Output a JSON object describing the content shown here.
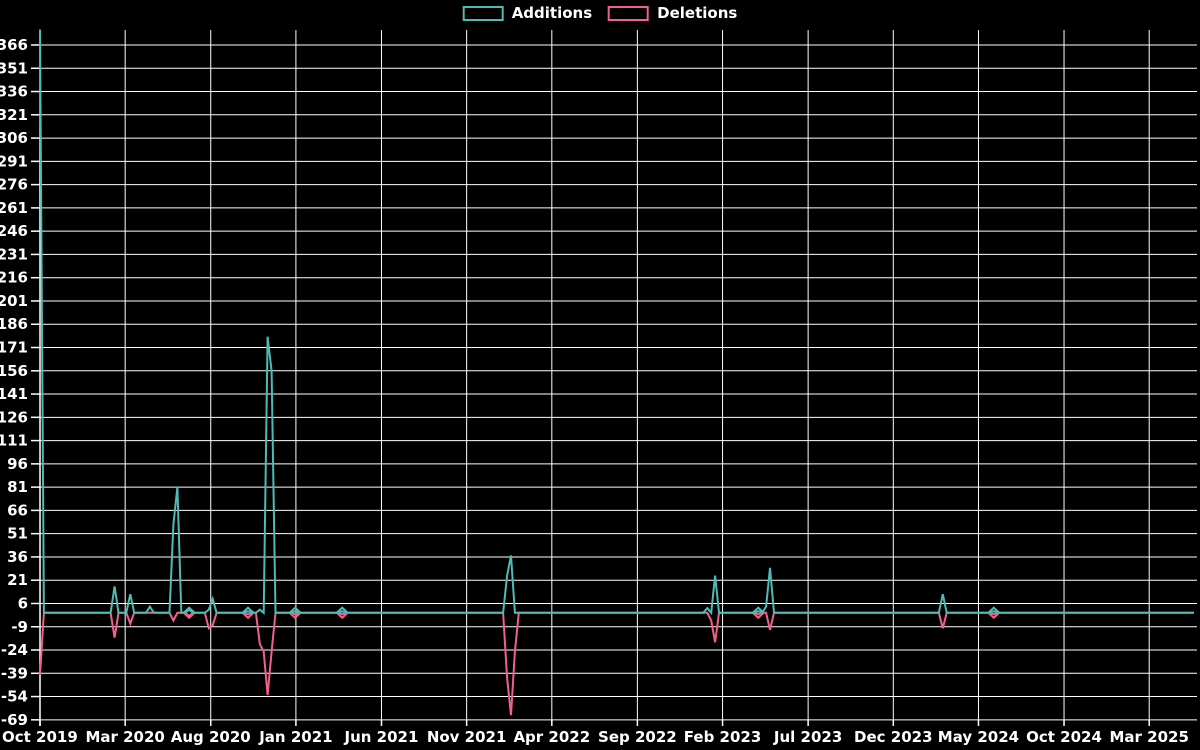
{
  "chart_data": {
    "type": "line",
    "title": "",
    "description": "Weekly code additions and deletions over time (code-frequency style chart), black background with white grid.",
    "legend": [
      {
        "name": "Additions",
        "color": "#4cbcb5"
      },
      {
        "name": "Deletions",
        "color": "#f2608c"
      }
    ],
    "legend_position": "top-center",
    "grid": true,
    "background_color": "#000000",
    "grid_color": "#ffffff",
    "text_color": "#ffffff",
    "x_axis": {
      "tick_labels": [
        "Oct 2019",
        "Mar 2020",
        "Aug 2020",
        "Jan 2021",
        "Jun 2021",
        "Nov 2021",
        "Apr 2022",
        "Sep 2022",
        "Feb 2023",
        "Jul 2023",
        "Dec 2023",
        "May 2024",
        "Oct 2024",
        "Mar 2025"
      ],
      "tick_weeks": [
        0,
        21.7,
        43.5,
        65.2,
        87.0,
        108.7,
        130.4,
        152.2,
        173.9,
        195.7,
        217.4,
        239.1,
        260.9,
        282.6
      ]
    },
    "y_axis": {
      "tick_labels": [
        "366",
        "351",
        "336",
        "321",
        "306",
        "291",
        "276",
        "261",
        "246",
        "231",
        "216",
        "201",
        "186",
        "171",
        "156",
        "141",
        "126",
        "111",
        "96",
        "81",
        "66",
        "51",
        "36",
        "21",
        "6",
        "-9",
        "-24",
        "-39",
        "-54",
        "-69"
      ],
      "tick_min": -69,
      "tick_max": 366,
      "tick_step": 15,
      "plot_top_value": 376,
      "plot_bottom_value": -69
    },
    "weeks_total": 294,
    "baseline_value": 0,
    "series": [
      {
        "name": "Additions",
        "color": "#4cbcb5",
        "default_value": 0,
        "points": {
          "0": 376,
          "19": 17,
          "23": 12,
          "28": 4,
          "34": 57,
          "35": 81,
          "38": 2,
          "43": 2,
          "44": 9,
          "53": 1,
          "56": 2,
          "58": 178,
          "59": 156,
          "65": 1,
          "77": 1,
          "119": 24,
          "120": 37,
          "170": 3,
          "172": 24,
          "183": 1,
          "185": 4,
          "186": 29,
          "230": 12,
          "243": 1
        }
      },
      {
        "name": "Deletions",
        "color": "#f2608c",
        "default_value": 0,
        "points": {
          "0": -40,
          "19": -16,
          "23": -7,
          "34": -5,
          "38": -2,
          "43": -10,
          "44": -8,
          "53": -1,
          "56": -20,
          "57": -25,
          "58": -53,
          "59": -25,
          "65": -1,
          "77": -1,
          "119": -42,
          "120": -66,
          "121": -25,
          "171": -5,
          "172": -19,
          "183": -1,
          "186": -11,
          "230": -10,
          "243": -1
        }
      }
    ],
    "isolated_point_marker_weeks": [
      38,
      53,
      65,
      77,
      183,
      243
    ],
    "marker_shape": "diamond"
  }
}
